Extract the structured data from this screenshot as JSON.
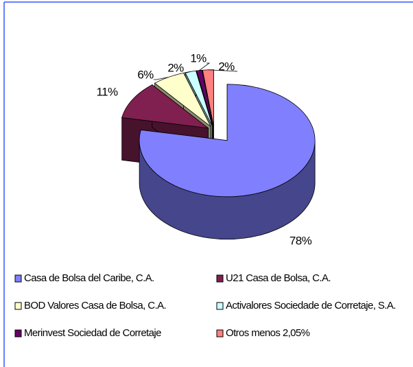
{
  "chart_data": {
    "type": "pie3d",
    "categories": [
      "Casa de Bolsa del Caribe, C.A.",
      "U21 Casa de Bolsa, C.A.",
      "BOD Valores Casa de Bolsa, C.A.",
      "Activalores Sociedade de Corretaje, S.A.",
      "Merinvest Sociedad de Corretaje",
      "Otros menos  2,05%"
    ],
    "values": [
      78,
      11,
      6,
      2,
      1,
      2
    ],
    "value_labels": [
      "78%",
      "11%",
      "6%",
      "2%",
      "1%",
      "2%"
    ],
    "colors": [
      "#8080ff",
      "#802050",
      "#ffffcc",
      "#ccffff",
      "#660066",
      "#ff8080"
    ]
  }
}
